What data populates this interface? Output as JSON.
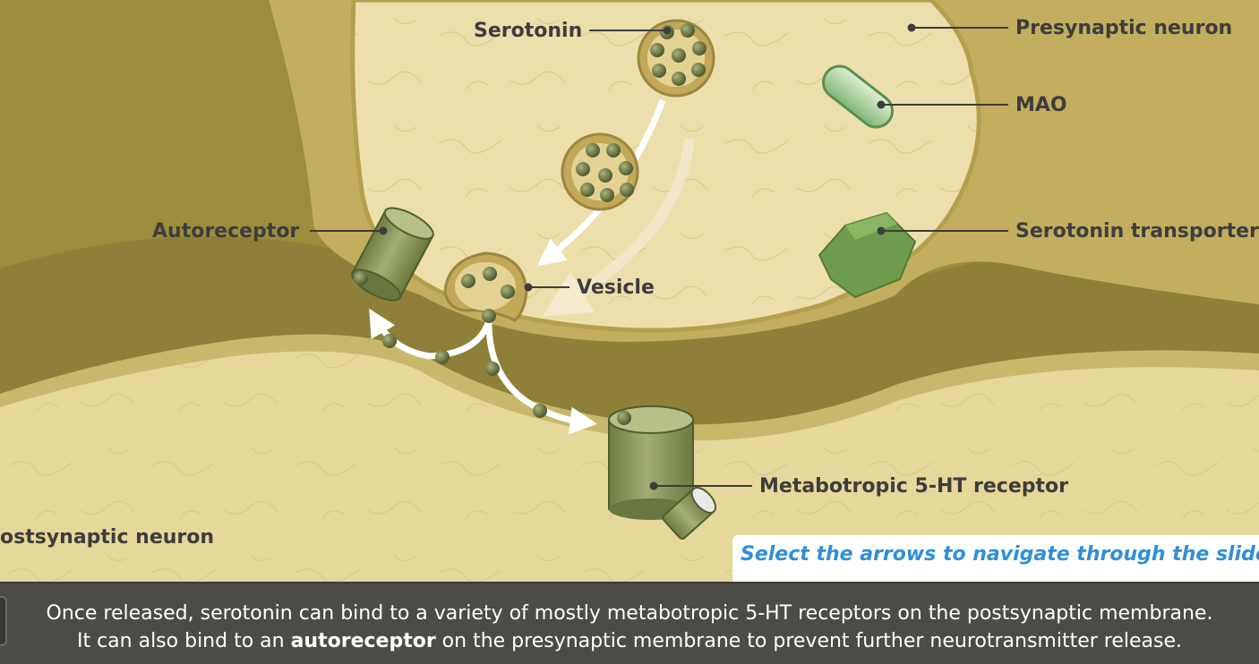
{
  "labels": {
    "serotonin": "Serotonin",
    "presynaptic_neuron": "Presynaptic neuron",
    "mao": "MAO",
    "autoreceptor": "Autoreceptor",
    "serotonin_transporter": "Serotonin transporter",
    "vesicle": "Vesicle",
    "metabotropic_receptor": "Metabotropic 5-HT receptor",
    "postsynaptic_neuron": "ostsynaptic neuron"
  },
  "hint": "Select the arrows to navigate through the slides",
  "caption": {
    "line1": "Once released, serotonin can bind to a variety of mostly metabotropic 5-HT receptors on the postsynaptic membrane.",
    "line2_before": "It can also bind to an ",
    "line2_bold": "autoreceptor",
    "line2_after": " on the presynaptic membrane to prevent further neurotransmitter release."
  },
  "colors": {
    "cytoplasm": "#ecdfab",
    "membrane": "#c8b468",
    "cleft": "#8a7b36",
    "receptor": "#8c9b59",
    "mao": "#9fcc91",
    "transporter": "#6e9b4c",
    "molecule": "#5d6a3a",
    "hint_text": "#2f8fd9",
    "caption_bg": "#4d4b47"
  }
}
